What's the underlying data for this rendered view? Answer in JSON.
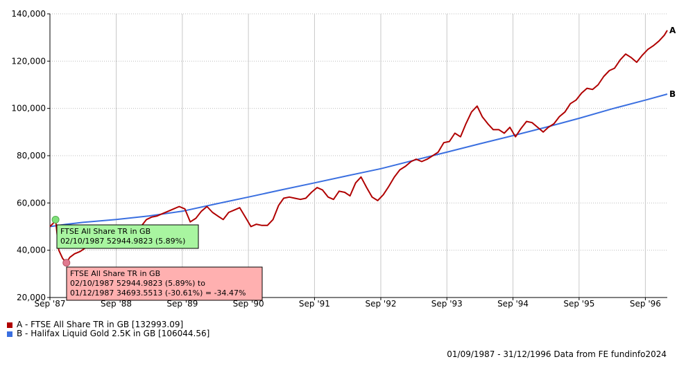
{
  "chart_data": {
    "type": "line",
    "xlim": [
      "1987-09-01",
      "1996-12-31"
    ],
    "ylim": [
      20000,
      140000
    ],
    "y_ticks": [
      20000,
      40000,
      60000,
      80000,
      100000,
      120000,
      140000
    ],
    "y_tick_labels": [
      "20,000",
      "40,000",
      "60,000",
      "80,000",
      "100,000",
      "120,000",
      "140,000"
    ],
    "x_ticks": [
      "1987-09-01",
      "1988-09-01",
      "1989-09-01",
      "1990-09-01",
      "1991-09-01",
      "1992-09-01",
      "1993-09-01",
      "1994-09-01",
      "1995-09-01",
      "1996-09-01"
    ],
    "x_tick_labels": [
      "Sep '87",
      "Sep '88",
      "Sep '89",
      "Sep '90",
      "Sep '91",
      "Sep '92",
      "Sep '93",
      "Sep '94",
      "Sep '95",
      "Sep '96"
    ],
    "grid": true,
    "series": [
      {
        "id": "A",
        "name": "A - FTSE All Share TR in GB [132993.09]",
        "end_label": "A",
        "color": "#b00000",
        "points": [
          [
            "1987-09-01",
            50000
          ],
          [
            "1987-09-20",
            51500
          ],
          [
            "1987-10-02",
            52945
          ],
          [
            "1987-10-20",
            40000
          ],
          [
            "1987-11-10",
            36500
          ],
          [
            "1987-12-01",
            34694
          ],
          [
            "1987-12-20",
            37000
          ],
          [
            "1988-01-15",
            38500
          ],
          [
            "1988-02-15",
            39500
          ],
          [
            "1988-03-15",
            41000
          ],
          [
            "1988-04-15",
            42500
          ],
          [
            "1988-05-15",
            43500
          ],
          [
            "1988-06-15",
            44500
          ],
          [
            "1988-07-15",
            45500
          ],
          [
            "1988-08-15",
            44000
          ],
          [
            "1988-09-15",
            43500
          ],
          [
            "1988-10-15",
            44500
          ],
          [
            "1988-11-15",
            46000
          ],
          [
            "1988-12-15",
            48000
          ],
          [
            "1989-01-15",
            50000
          ],
          [
            "1989-02-15",
            53000
          ],
          [
            "1989-03-15",
            54000
          ],
          [
            "1989-04-15",
            54500
          ],
          [
            "1989-05-15",
            55500
          ],
          [
            "1989-06-15",
            56500
          ],
          [
            "1989-07-15",
            57500
          ],
          [
            "1989-08-15",
            58500
          ],
          [
            "1989-09-15",
            57500
          ],
          [
            "1989-10-15",
            52000
          ],
          [
            "1989-11-15",
            53500
          ],
          [
            "1989-12-15",
            56500
          ],
          [
            "1990-01-15",
            58500
          ],
          [
            "1990-02-15",
            56000
          ],
          [
            "1990-03-15",
            54500
          ],
          [
            "1990-04-15",
            53000
          ],
          [
            "1990-05-15",
            56000
          ],
          [
            "1990-06-15",
            57000
          ],
          [
            "1990-07-15",
            58000
          ],
          [
            "1990-08-15",
            54000
          ],
          [
            "1990-09-15",
            50000
          ],
          [
            "1990-10-15",
            51000
          ],
          [
            "1990-11-15",
            50500
          ],
          [
            "1990-12-15",
            50500
          ],
          [
            "1991-01-15",
            53000
          ],
          [
            "1991-02-15",
            59000
          ],
          [
            "1991-03-15",
            62000
          ],
          [
            "1991-04-15",
            62500
          ],
          [
            "1991-05-15",
            62000
          ],
          [
            "1991-06-15",
            61500
          ],
          [
            "1991-07-15",
            62000
          ],
          [
            "1991-08-15",
            64500
          ],
          [
            "1991-09-15",
            66500
          ],
          [
            "1991-10-15",
            65500
          ],
          [
            "1991-11-15",
            62500
          ],
          [
            "1991-12-15",
            61500
          ],
          [
            "1992-01-15",
            65000
          ],
          [
            "1992-02-15",
            64500
          ],
          [
            "1992-03-15",
            63000
          ],
          [
            "1992-04-15",
            68500
          ],
          [
            "1992-05-15",
            71000
          ],
          [
            "1992-06-15",
            66500
          ],
          [
            "1992-07-15",
            62500
          ],
          [
            "1992-08-15",
            61000
          ],
          [
            "1992-09-15",
            63500
          ],
          [
            "1992-10-15",
            67000
          ],
          [
            "1992-11-15",
            71000
          ],
          [
            "1992-12-15",
            74000
          ],
          [
            "1993-01-15",
            75500
          ],
          [
            "1993-02-15",
            77500
          ],
          [
            "1993-03-15",
            78500
          ],
          [
            "1993-04-15",
            77500
          ],
          [
            "1993-05-15",
            78500
          ],
          [
            "1993-06-15",
            80000
          ],
          [
            "1993-07-15",
            81500
          ],
          [
            "1993-08-15",
            85500
          ],
          [
            "1993-09-15",
            86000
          ],
          [
            "1993-10-15",
            89500
          ],
          [
            "1993-11-15",
            88000
          ],
          [
            "1993-12-15",
            93500
          ],
          [
            "1994-01-15",
            98500
          ],
          [
            "1994-02-15",
            101000
          ],
          [
            "1994-03-15",
            96500
          ],
          [
            "1994-04-15",
            93500
          ],
          [
            "1994-05-15",
            91000
          ],
          [
            "1994-06-15",
            91000
          ],
          [
            "1994-07-15",
            89500
          ],
          [
            "1994-08-15",
            92000
          ],
          [
            "1994-09-15",
            88000
          ],
          [
            "1994-10-15",
            91500
          ],
          [
            "1994-11-15",
            94500
          ],
          [
            "1994-12-15",
            94000
          ],
          [
            "1995-01-15",
            92000
          ],
          [
            "1995-02-15",
            90000
          ],
          [
            "1995-03-15",
            92000
          ],
          [
            "1995-04-15",
            93500
          ],
          [
            "1995-05-15",
            96500
          ],
          [
            "1995-06-15",
            98500
          ],
          [
            "1995-07-15",
            102000
          ],
          [
            "1995-08-15",
            103500
          ],
          [
            "1995-09-15",
            106500
          ],
          [
            "1995-10-15",
            108500
          ],
          [
            "1995-11-15",
            108000
          ],
          [
            "1995-12-15",
            110000
          ],
          [
            "1996-01-15",
            113500
          ],
          [
            "1996-02-15",
            116000
          ],
          [
            "1996-03-15",
            117000
          ],
          [
            "1996-04-15",
            120500
          ],
          [
            "1996-05-15",
            123000
          ],
          [
            "1996-06-15",
            121500
          ],
          [
            "1996-07-15",
            119500
          ],
          [
            "1996-08-15",
            122500
          ],
          [
            "1996-09-15",
            125000
          ],
          [
            "1996-10-15",
            126500
          ],
          [
            "1996-11-15",
            128500
          ],
          [
            "1996-12-15",
            131000
          ],
          [
            "1996-12-31",
            132993
          ]
        ]
      },
      {
        "id": "B",
        "name": "B - Halifax Liquid Gold 2.5K in GB [106044.56]",
        "end_label": "B",
        "color": "#3a6fe0",
        "points": [
          [
            "1987-09-01",
            50000
          ],
          [
            "1987-12-01",
            51000
          ],
          [
            "1988-03-01",
            51800
          ],
          [
            "1988-09-01",
            53000
          ],
          [
            "1989-03-01",
            54500
          ],
          [
            "1989-09-01",
            56500
          ],
          [
            "1990-03-01",
            59500
          ],
          [
            "1990-09-01",
            62500
          ],
          [
            "1991-03-01",
            65500
          ],
          [
            "1991-09-01",
            68500
          ],
          [
            "1992-03-01",
            71500
          ],
          [
            "1992-09-01",
            74500
          ],
          [
            "1993-03-01",
            78000
          ],
          [
            "1993-09-01",
            81500
          ],
          [
            "1994-03-01",
            85000
          ],
          [
            "1994-09-01",
            88500
          ],
          [
            "1995-03-01",
            92000
          ],
          [
            "1995-09-01",
            95800
          ],
          [
            "1996-03-01",
            99800
          ],
          [
            "1996-09-01",
            103500
          ],
          [
            "1996-12-31",
            106045
          ]
        ]
      }
    ],
    "tooltips": [
      {
        "series": "A",
        "date": "1987-10-02",
        "value": 52944.9823,
        "background": "#a8f5a0",
        "lines": [
          "FTSE All Share TR in GB",
          "02/10/1987  52944.9823 (5.89%)"
        ]
      },
      {
        "series": "A",
        "date": "1987-12-01",
        "value": 34693.5513,
        "background": "#ffb0b0",
        "lines": [
          "FTSE All Share TR in GB",
          "02/10/1987  52944.9823 (5.89%)  to",
          "01/12/1987  34693.5513 (-30.61%)  = -34.47%"
        ]
      }
    ]
  },
  "footer": {
    "text": "01/09/1987 - 31/12/1996 Data from FE fundinfo2024"
  }
}
